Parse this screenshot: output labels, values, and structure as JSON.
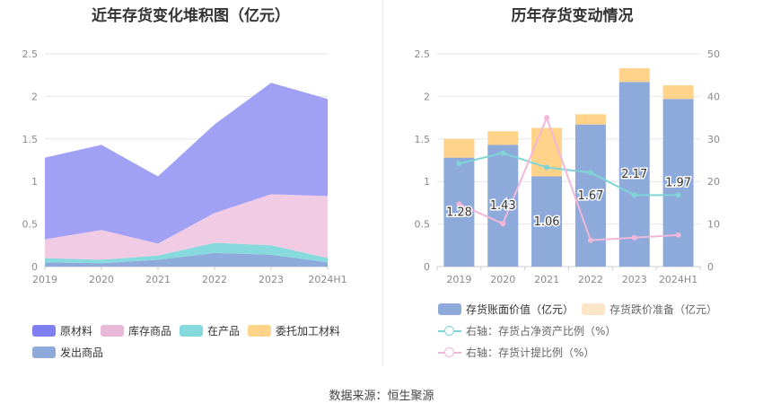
{
  "source_text": "数据来源：恒生聚源",
  "chart_data": [
    {
      "type": "area",
      "stacked": true,
      "title": "近年存货变化堆积图（亿元）",
      "categories": [
        "2019",
        "2020",
        "2021",
        "2022",
        "2023",
        "2024H1"
      ],
      "ylim": [
        0,
        2.5
      ],
      "yticks": [
        "0",
        "0.5",
        "1",
        "1.5",
        "2",
        "2.5"
      ],
      "grid": true,
      "legend_position": "bottom",
      "series": [
        {
          "name": "发出商品",
          "color": "#8eaadb",
          "values": [
            0.05,
            0.04,
            0.08,
            0.16,
            0.14,
            0.05
          ]
        },
        {
          "name": "委托加工材料",
          "color": "#ffd38a",
          "values": [
            0.0,
            0.0,
            0.0,
            0.0,
            0.0,
            0.0
          ]
        },
        {
          "name": "在产品",
          "color": "#86d9dc",
          "values": [
            0.05,
            0.04,
            0.05,
            0.12,
            0.11,
            0.05
          ]
        },
        {
          "name": "库存商品",
          "color": "#f0cbe3",
          "values": [
            0.22,
            0.35,
            0.14,
            0.35,
            0.6,
            0.73
          ]
        },
        {
          "name": "原材料",
          "color": "#a0a0f5",
          "values": [
            0.96,
            1.0,
            0.79,
            1.04,
            1.31,
            1.14
          ]
        }
      ],
      "legend": [
        {
          "name": "原材料",
          "color": "#7f7ff2"
        },
        {
          "name": "库存商品",
          "color": "#e9b9d9"
        },
        {
          "name": "在产品",
          "color": "#86d9dc"
        },
        {
          "name": "委托加工材料",
          "color": "#ffd38a"
        },
        {
          "name": "发出商品",
          "color": "#8eaadb"
        }
      ]
    },
    {
      "type": "bar+line",
      "title": "历年存货变动情况",
      "categories": [
        "2019",
        "2020",
        "2021",
        "2022",
        "2023",
        "2024H1"
      ],
      "ylim_left": [
        0,
        2.5
      ],
      "yticks_left": [
        "0",
        "0.5",
        "1",
        "1.5",
        "2",
        "2.5"
      ],
      "ylim_right": [
        0,
        50
      ],
      "yticks_right": [
        "0",
        "10",
        "20",
        "30",
        "40",
        "50"
      ],
      "grid": true,
      "legend_position": "bottom",
      "bar_series": [
        {
          "name": "存货账面价值（亿元）",
          "color": "#8eaadb",
          "values": [
            1.28,
            1.43,
            1.06,
            1.67,
            2.17,
            1.97
          ],
          "labels": [
            "1.28",
            "1.43",
            "1.06",
            "1.67",
            "2.17",
            "1.97"
          ]
        },
        {
          "name": "存货跌价准备（亿元）",
          "color": "#ffd38a",
          "legend_color": "#fde6c7",
          "values": [
            0.22,
            0.16,
            0.57,
            0.12,
            0.16,
            0.16
          ]
        }
      ],
      "line_series": [
        {
          "name": "右轴：存货占净资产比例（%）",
          "color": "#7fd4d6",
          "values": [
            24.2,
            26.7,
            23.3,
            22.1,
            16.8,
            16.8
          ]
        },
        {
          "name": "右轴：存货计提比例（%）",
          "color": "#f2b6d8",
          "values": [
            14.7,
            10.1,
            35.0,
            6.2,
            6.8,
            7.4
          ]
        }
      ]
    }
  ]
}
